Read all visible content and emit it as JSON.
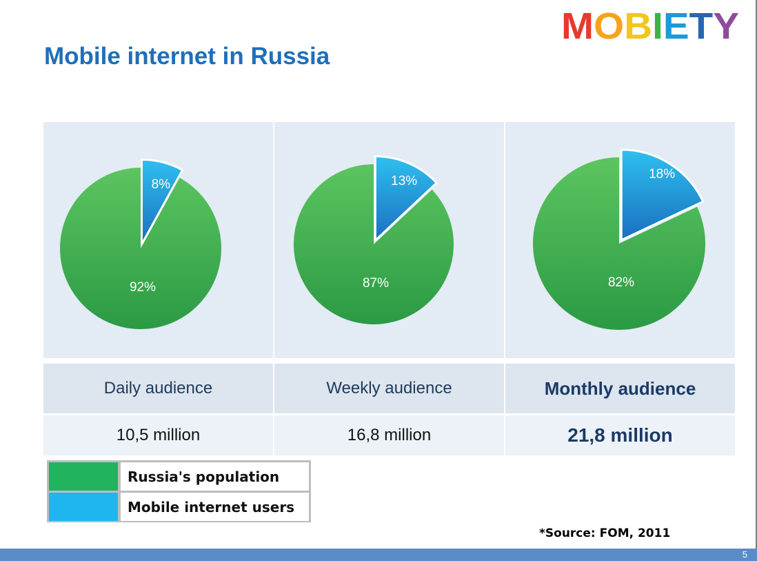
{
  "slide": {
    "title": "Mobile internet in Russia",
    "logo_text": "MOBIETY",
    "page_number": "5",
    "source": "*Source: FOM, 2011"
  },
  "colors": {
    "population_green": "#22b35e",
    "mobile_blue": "#1fb6ef",
    "title_blue": "#1f6fb8",
    "logo_letters": [
      "#e8392c",
      "#f6a21b",
      "#f4c51c",
      "#3eb24a",
      "#1e9ad6",
      "#2766b1",
      "#8f4b9c"
    ]
  },
  "chart_data": [
    {
      "type": "pie",
      "title": "Daily audience",
      "value_label": "10,5 million",
      "slices": [
        {
          "name": "Mobile internet users",
          "value": 8,
          "label": "8%"
        },
        {
          "name": "Russia's population",
          "value": 92,
          "label": "92%"
        }
      ]
    },
    {
      "type": "pie",
      "title": "Weekly audience",
      "value_label": "16,8 million",
      "slices": [
        {
          "name": "Mobile internet users",
          "value": 13,
          "label": "13%"
        },
        {
          "name": "Russia's population",
          "value": 87,
          "label": "87%"
        }
      ]
    },
    {
      "type": "pie",
      "title": "Monthly audience",
      "value_label": "21,8 million",
      "slices": [
        {
          "name": "Mobile internet users",
          "value": 18,
          "label": "18%"
        },
        {
          "name": "Russia's population",
          "value": 82,
          "label": "82%"
        }
      ]
    }
  ],
  "legend": [
    {
      "label": "Russia's population",
      "color": "#22b35e"
    },
    {
      "label": "Mobile internet users",
      "color": "#1fb6ef"
    }
  ]
}
